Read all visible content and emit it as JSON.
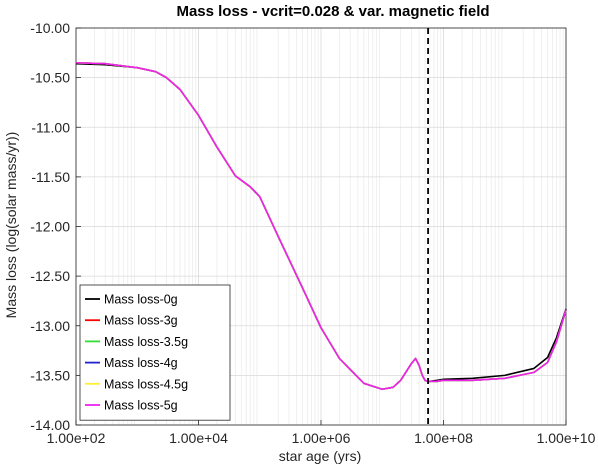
{
  "chart_data": {
    "type": "line",
    "title": "Mass loss - vcrit=0.028 & var. magnetic field",
    "xlabel": "star age (yrs)",
    "ylabel": "Mass loss (log(solar mass/yr))",
    "xscale": "log",
    "xlim": [
      100,
      10000000000
    ],
    "ylim": [
      -14.0,
      -10.0
    ],
    "xticks": [
      100,
      10000,
      1000000,
      100000000,
      10000000000
    ],
    "xtick_labels": [
      "1.00e+02",
      "1.00e+04",
      "1.00e+06",
      "1.00e+08",
      "1.00e+10"
    ],
    "yticks": [
      -10.0,
      -10.5,
      -11.0,
      -11.5,
      -12.0,
      -12.5,
      -13.0,
      -13.5,
      -14.0
    ],
    "ytick_labels": [
      "-10.00",
      "-10.50",
      "-11.00",
      "-11.50",
      "-12.00",
      "-12.50",
      "-13.00",
      "-13.50",
      "-14.00"
    ],
    "grid": true,
    "legend_position": "bottom-left",
    "vline": {
      "x": 56000000,
      "style": "dashed",
      "color": "#000000"
    },
    "series": [
      {
        "name": "Mass loss-0g",
        "color": "#000000",
        "x": [
          100,
          300,
          1000,
          2000,
          3000,
          5000,
          10000,
          20000,
          40000,
          70000,
          100000,
          200000,
          500000,
          1000000,
          2000000,
          5000000,
          10000000,
          15000000,
          20000000,
          30000000,
          35000000,
          40000000,
          45000000,
          50000000,
          55000000,
          60000000,
          80000000,
          100000000,
          300000000,
          1000000000,
          3000000000,
          5000000000,
          7000000000,
          10000000000
        ],
        "y": [
          -10.36,
          -10.37,
          -10.4,
          -10.44,
          -10.5,
          -10.62,
          -10.88,
          -11.2,
          -11.49,
          -11.6,
          -11.7,
          -12.1,
          -12.62,
          -13.02,
          -13.33,
          -13.58,
          -13.64,
          -13.62,
          -13.55,
          -13.38,
          -13.33,
          -13.4,
          -13.5,
          -13.55,
          -13.56,
          -13.56,
          -13.55,
          -13.54,
          -13.53,
          -13.5,
          -13.43,
          -13.32,
          -13.12,
          -12.83
        ]
      },
      {
        "name": "Mass loss-3g",
        "color": "#ff0000",
        "x": [
          100,
          300,
          1000,
          2000,
          3000,
          5000,
          10000,
          20000,
          40000,
          70000,
          100000,
          200000,
          500000,
          1000000,
          2000000,
          5000000,
          10000000,
          15000000,
          20000000,
          30000000,
          35000000,
          40000000,
          45000000,
          50000000,
          55000000,
          60000000,
          80000000,
          100000000,
          300000000,
          1000000000,
          3000000000,
          5000000000,
          7000000000,
          10000000000
        ],
        "y": [
          -10.35,
          -10.36,
          -10.4,
          -10.44,
          -10.5,
          -10.62,
          -10.88,
          -11.2,
          -11.49,
          -11.6,
          -11.7,
          -12.1,
          -12.62,
          -13.02,
          -13.33,
          -13.58,
          -13.64,
          -13.62,
          -13.55,
          -13.38,
          -13.33,
          -13.4,
          -13.5,
          -13.55,
          -13.56,
          -13.56,
          -13.56,
          -13.55,
          -13.55,
          -13.53,
          -13.47,
          -13.37,
          -13.16,
          -12.84
        ]
      },
      {
        "name": "Mass loss-3.5g",
        "color": "#33dd33",
        "x": [
          100,
          300,
          1000,
          2000,
          3000,
          5000,
          10000,
          20000,
          40000,
          70000,
          100000,
          200000,
          500000,
          1000000,
          2000000,
          5000000,
          10000000,
          15000000,
          20000000,
          30000000,
          35000000,
          40000000,
          45000000,
          50000000,
          55000000,
          60000000,
          80000000,
          100000000,
          300000000,
          1000000000,
          3000000000,
          5000000000,
          7000000000,
          10000000000
        ],
        "y": [
          -10.35,
          -10.36,
          -10.4,
          -10.44,
          -10.5,
          -10.62,
          -10.88,
          -11.2,
          -11.49,
          -11.6,
          -11.7,
          -12.1,
          -12.62,
          -13.02,
          -13.33,
          -13.58,
          -13.64,
          -13.62,
          -13.55,
          -13.38,
          -13.33,
          -13.4,
          -13.5,
          -13.55,
          -13.56,
          -13.56,
          -13.56,
          -13.55,
          -13.55,
          -13.53,
          -13.47,
          -13.37,
          -13.16,
          -12.84
        ]
      },
      {
        "name": "Mass loss-4g",
        "color": "#2222cc",
        "x": [
          100,
          300,
          1000,
          2000,
          3000,
          5000,
          10000,
          20000,
          40000,
          70000,
          100000,
          200000,
          500000,
          1000000,
          2000000,
          5000000,
          10000000,
          15000000,
          20000000,
          30000000,
          35000000,
          40000000,
          45000000,
          50000000,
          55000000,
          60000000,
          80000000,
          100000000,
          300000000,
          1000000000,
          3000000000,
          5000000000,
          7000000000,
          10000000000
        ],
        "y": [
          -10.35,
          -10.36,
          -10.4,
          -10.44,
          -10.5,
          -10.62,
          -10.88,
          -11.2,
          -11.49,
          -11.6,
          -11.7,
          -12.1,
          -12.62,
          -13.02,
          -13.33,
          -13.58,
          -13.64,
          -13.62,
          -13.55,
          -13.38,
          -13.33,
          -13.4,
          -13.5,
          -13.55,
          -13.56,
          -13.56,
          -13.56,
          -13.55,
          -13.55,
          -13.53,
          -13.47,
          -13.37,
          -13.16,
          -12.84
        ]
      },
      {
        "name": "Mass loss-4.5g",
        "color": "#ffee33",
        "x": [
          100,
          300,
          1000,
          2000,
          3000,
          5000,
          10000,
          20000,
          40000,
          70000,
          100000,
          200000,
          500000,
          1000000,
          2000000,
          5000000,
          10000000,
          15000000,
          20000000,
          30000000,
          35000000,
          40000000,
          45000000,
          50000000,
          55000000,
          60000000,
          80000000,
          100000000,
          300000000,
          1000000000,
          3000000000,
          5000000000,
          7000000000,
          10000000000
        ],
        "y": [
          -10.35,
          -10.36,
          -10.4,
          -10.44,
          -10.5,
          -10.62,
          -10.88,
          -11.2,
          -11.49,
          -11.6,
          -11.7,
          -12.1,
          -12.62,
          -13.02,
          -13.33,
          -13.58,
          -13.64,
          -13.62,
          -13.55,
          -13.38,
          -13.33,
          -13.4,
          -13.5,
          -13.55,
          -13.56,
          -13.56,
          -13.56,
          -13.55,
          -13.55,
          -13.53,
          -13.47,
          -13.37,
          -13.16,
          -12.84
        ]
      },
      {
        "name": "Mass loss-5g",
        "color": "#ee22ee",
        "x": [
          100,
          300,
          1000,
          2000,
          3000,
          5000,
          10000,
          20000,
          40000,
          70000,
          100000,
          200000,
          500000,
          1000000,
          2000000,
          5000000,
          10000000,
          15000000,
          20000000,
          30000000,
          35000000,
          40000000,
          45000000,
          50000000,
          55000000,
          60000000,
          80000000,
          100000000,
          300000000,
          1000000000,
          3000000000,
          5000000000,
          7000000000,
          10000000000
        ],
        "y": [
          -10.35,
          -10.36,
          -10.4,
          -10.44,
          -10.5,
          -10.62,
          -10.88,
          -11.2,
          -11.49,
          -11.6,
          -11.7,
          -12.1,
          -12.62,
          -13.02,
          -13.33,
          -13.58,
          -13.64,
          -13.62,
          -13.55,
          -13.38,
          -13.33,
          -13.4,
          -13.5,
          -13.55,
          -13.56,
          -13.56,
          -13.56,
          -13.55,
          -13.55,
          -13.53,
          -13.47,
          -13.37,
          -13.16,
          -12.84
        ]
      }
    ]
  }
}
